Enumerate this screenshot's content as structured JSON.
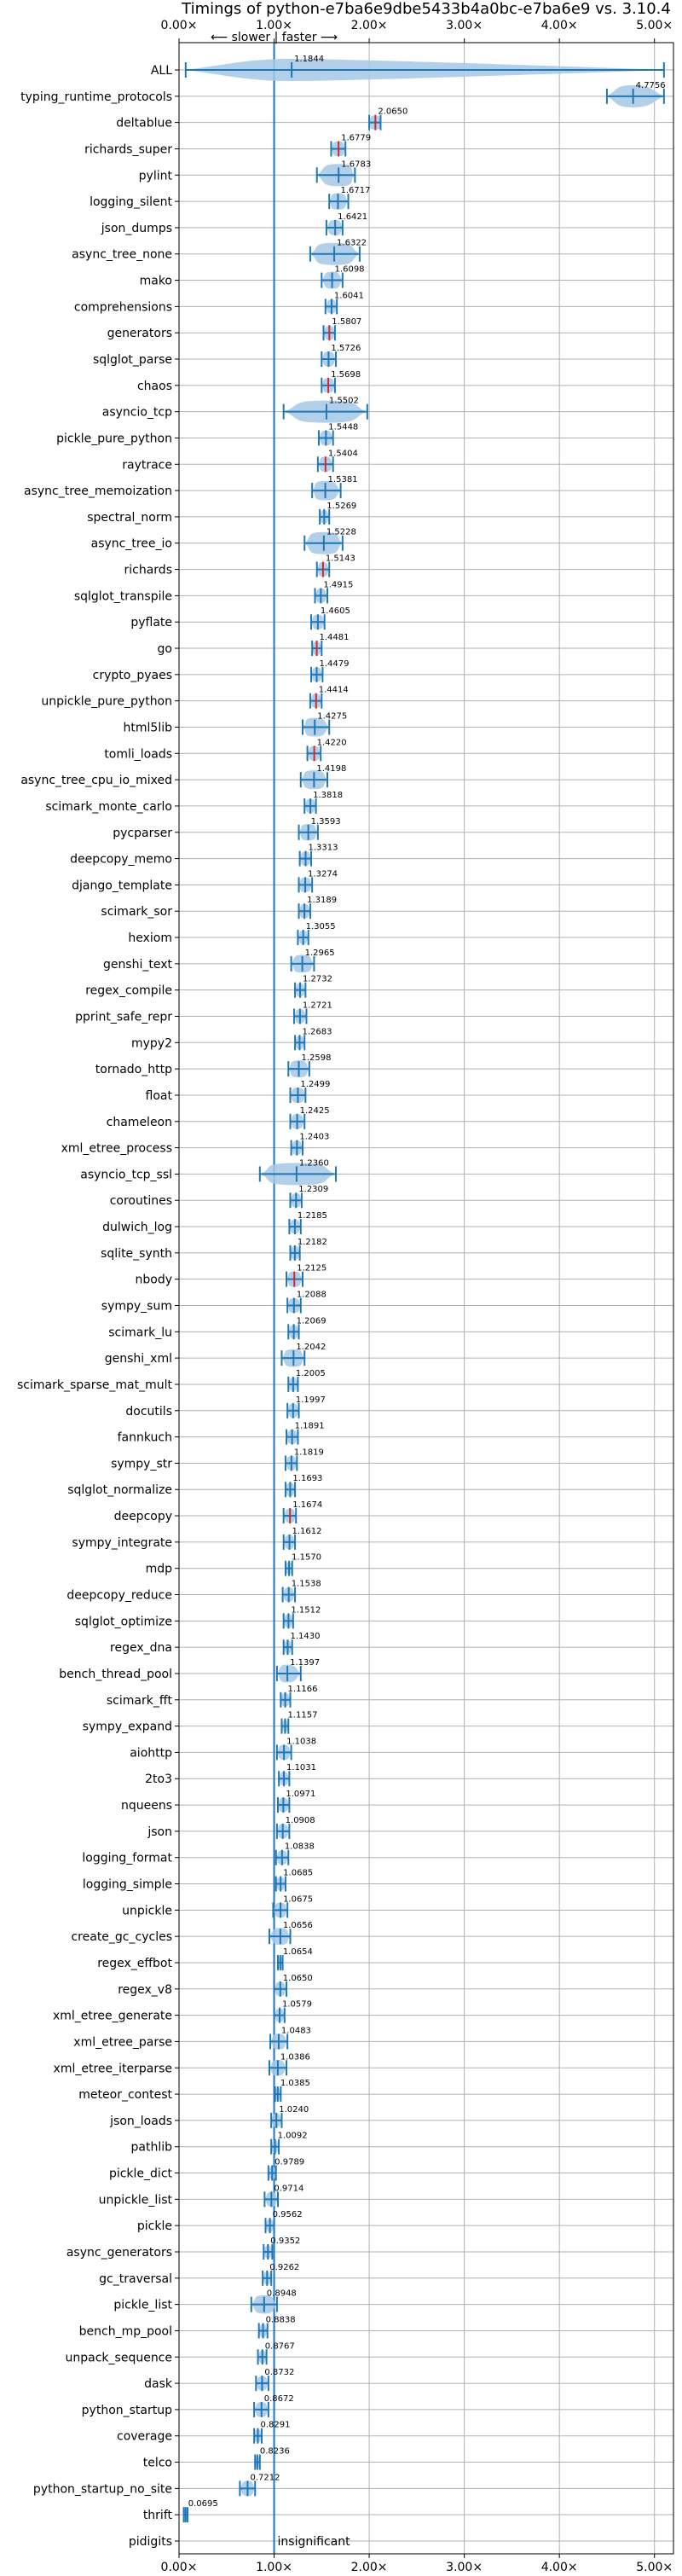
{
  "chart_data": {
    "type": "violin",
    "title": "Timings of python-e7ba6e9dbe5433b4a0bc-e7ba6e9 vs. 3.10.4",
    "direction_note": "⟵ slower | faster ⟶",
    "xlim": [
      0,
      5.2
    ],
    "xticks": [
      0,
      1,
      2,
      3,
      4,
      5
    ],
    "xtick_labels": [
      "0.00×",
      "1.00×",
      "2.00×",
      "3.00×",
      "4.00×",
      "5.00×"
    ],
    "grid": true,
    "reference_line": 1.0,
    "colors": {
      "violin": "#a6c8e6",
      "line": "#1f77b4",
      "median_marker": "#d62728",
      "grid": "#b0b0b0",
      "frame": "#000000"
    },
    "benchmarks": [
      {
        "name": "ALL",
        "value": 1.1844,
        "label": "1.1844",
        "min": 0.07,
        "max": 5.1,
        "spread": 0.45
      },
      {
        "name": "typing_runtime_protocols",
        "value": 4.7756,
        "label": "4.7756",
        "min": 4.5,
        "max": 5.1,
        "spread": 0.2
      },
      {
        "name": "deltablue",
        "value": 2.065,
        "label": "2.0650",
        "min": 2.0,
        "max": 2.12,
        "spread": 0.08,
        "red": true
      },
      {
        "name": "richards_super",
        "value": 1.6779,
        "label": "1.6779",
        "min": 1.6,
        "max": 1.75,
        "spread": 0.08,
        "red": true
      },
      {
        "name": "pylint",
        "value": 1.6783,
        "label": "1.6783",
        "min": 1.45,
        "max": 1.85,
        "spread": 0.2
      },
      {
        "name": "logging_silent",
        "value": 1.6717,
        "label": "1.6717",
        "min": 1.58,
        "max": 1.78,
        "spread": 0.1
      },
      {
        "name": "json_dumps",
        "value": 1.6421,
        "label": "1.6421",
        "min": 1.55,
        "max": 1.72,
        "spread": 0.08
      },
      {
        "name": "async_tree_none",
        "value": 1.6322,
        "label": "1.6322",
        "min": 1.38,
        "max": 1.9,
        "spread": 0.25
      },
      {
        "name": "mako",
        "value": 1.6098,
        "label": "1.6098",
        "min": 1.5,
        "max": 1.72,
        "spread": 0.1
      },
      {
        "name": "comprehensions",
        "value": 1.6041,
        "label": "1.6041",
        "min": 1.54,
        "max": 1.66,
        "spread": 0.06
      },
      {
        "name": "generators",
        "value": 1.5807,
        "label": "1.5807",
        "min": 1.52,
        "max": 1.64,
        "spread": 0.06,
        "red": true
      },
      {
        "name": "sqlglot_parse",
        "value": 1.5726,
        "label": "1.5726",
        "min": 1.5,
        "max": 1.65,
        "spread": 0.07
      },
      {
        "name": "chaos",
        "value": 1.5698,
        "label": "1.5698",
        "min": 1.5,
        "max": 1.64,
        "spread": 0.07,
        "red": true
      },
      {
        "name": "asyncio_tcp",
        "value": 1.5502,
        "label": "1.5502",
        "min": 1.1,
        "max": 1.98,
        "spread": 0.4
      },
      {
        "name": "pickle_pure_python",
        "value": 1.5448,
        "label": "1.5448",
        "min": 1.47,
        "max": 1.62,
        "spread": 0.07
      },
      {
        "name": "raytrace",
        "value": 1.5404,
        "label": "1.5404",
        "min": 1.46,
        "max": 1.62,
        "spread": 0.07,
        "red": true
      },
      {
        "name": "async_tree_memoization",
        "value": 1.5381,
        "label": "1.5381",
        "min": 1.4,
        "max": 1.7,
        "spread": 0.15
      },
      {
        "name": "spectral_norm",
        "value": 1.5269,
        "label": "1.5269",
        "min": 1.48,
        "max": 1.58,
        "spread": 0.05
      },
      {
        "name": "async_tree_io",
        "value": 1.5228,
        "label": "1.5228",
        "min": 1.32,
        "max": 1.72,
        "spread": 0.2
      },
      {
        "name": "richards",
        "value": 1.5143,
        "label": "1.5143",
        "min": 1.45,
        "max": 1.58,
        "spread": 0.06,
        "red": true
      },
      {
        "name": "sqlglot_transpile",
        "value": 1.4915,
        "label": "1.4915",
        "min": 1.43,
        "max": 1.56,
        "spread": 0.06
      },
      {
        "name": "pyflate",
        "value": 1.4605,
        "label": "1.4605",
        "min": 1.39,
        "max": 1.53,
        "spread": 0.07
      },
      {
        "name": "go",
        "value": 1.4481,
        "label": "1.4481",
        "min": 1.4,
        "max": 1.5,
        "spread": 0.05,
        "red": true
      },
      {
        "name": "crypto_pyaes",
        "value": 1.4479,
        "label": "1.4479",
        "min": 1.39,
        "max": 1.51,
        "spread": 0.06
      },
      {
        "name": "unpickle_pure_python",
        "value": 1.4414,
        "label": "1.4414",
        "min": 1.38,
        "max": 1.5,
        "spread": 0.06,
        "red": true
      },
      {
        "name": "html5lib",
        "value": 1.4275,
        "label": "1.4275",
        "min": 1.3,
        "max": 1.58,
        "spread": 0.13
      },
      {
        "name": "tomli_loads",
        "value": 1.422,
        "label": "1.4220",
        "min": 1.35,
        "max": 1.49,
        "spread": 0.07,
        "red": true
      },
      {
        "name": "async_tree_cpu_io_mixed",
        "value": 1.4198,
        "label": "1.4198",
        "min": 1.28,
        "max": 1.56,
        "spread": 0.14
      },
      {
        "name": "scimark_monte_carlo",
        "value": 1.3818,
        "label": "1.3818",
        "min": 1.32,
        "max": 1.44,
        "spread": 0.06
      },
      {
        "name": "pycparser",
        "value": 1.3593,
        "label": "1.3593",
        "min": 1.26,
        "max": 1.46,
        "spread": 0.1
      },
      {
        "name": "deepcopy_memo",
        "value": 1.3313,
        "label": "1.3313",
        "min": 1.27,
        "max": 1.39,
        "spread": 0.06
      },
      {
        "name": "django_template",
        "value": 1.3274,
        "label": "1.3274",
        "min": 1.26,
        "max": 1.4,
        "spread": 0.07
      },
      {
        "name": "scimark_sor",
        "value": 1.3189,
        "label": "1.3189",
        "min": 1.26,
        "max": 1.38,
        "spread": 0.06
      },
      {
        "name": "hexiom",
        "value": 1.3055,
        "label": "1.3055",
        "min": 1.25,
        "max": 1.36,
        "spread": 0.05
      },
      {
        "name": "genshi_text",
        "value": 1.2965,
        "label": "1.2965",
        "min": 1.18,
        "max": 1.42,
        "spread": 0.12
      },
      {
        "name": "regex_compile",
        "value": 1.2732,
        "label": "1.2732",
        "min": 1.22,
        "max": 1.33,
        "spread": 0.05
      },
      {
        "name": "pprint_safe_repr",
        "value": 1.2721,
        "label": "1.2721",
        "min": 1.21,
        "max": 1.34,
        "spread": 0.06
      },
      {
        "name": "mypy2",
        "value": 1.2683,
        "label": "1.2683",
        "min": 1.22,
        "max": 1.32,
        "spread": 0.05
      },
      {
        "name": "tornado_http",
        "value": 1.2598,
        "label": "1.2598",
        "min": 1.15,
        "max": 1.37,
        "spread": 0.11
      },
      {
        "name": "float",
        "value": 1.2499,
        "label": "1.2499",
        "min": 1.17,
        "max": 1.33,
        "spread": 0.08
      },
      {
        "name": "chameleon",
        "value": 1.2425,
        "label": "1.2425",
        "min": 1.17,
        "max": 1.32,
        "spread": 0.07
      },
      {
        "name": "xml_etree_process",
        "value": 1.2403,
        "label": "1.2403",
        "min": 1.18,
        "max": 1.3,
        "spread": 0.06
      },
      {
        "name": "asyncio_tcp_ssl",
        "value": 1.236,
        "label": "1.2360",
        "min": 0.85,
        "max": 1.65,
        "spread": 0.4
      },
      {
        "name": "coroutines",
        "value": 1.2309,
        "label": "1.2309",
        "min": 1.17,
        "max": 1.29,
        "spread": 0.06
      },
      {
        "name": "dulwich_log",
        "value": 1.2185,
        "label": "1.2185",
        "min": 1.16,
        "max": 1.28,
        "spread": 0.06
      },
      {
        "name": "sqlite_synth",
        "value": 1.2182,
        "label": "1.2182",
        "min": 1.17,
        "max": 1.27,
        "spread": 0.05
      },
      {
        "name": "nbody",
        "value": 1.2125,
        "label": "1.2125",
        "min": 1.13,
        "max": 1.3,
        "spread": 0.08,
        "red": true
      },
      {
        "name": "sympy_sum",
        "value": 1.2088,
        "label": "1.2088",
        "min": 1.14,
        "max": 1.28,
        "spread": 0.07
      },
      {
        "name": "scimark_lu",
        "value": 1.2069,
        "label": "1.2069",
        "min": 1.15,
        "max": 1.26,
        "spread": 0.05
      },
      {
        "name": "genshi_xml",
        "value": 1.2042,
        "label": "1.2042",
        "min": 1.08,
        "max": 1.32,
        "spread": 0.12
      },
      {
        "name": "scimark_sparse_mat_mult",
        "value": 1.2005,
        "label": "1.2005",
        "min": 1.15,
        "max": 1.25,
        "spread": 0.05
      },
      {
        "name": "docutils",
        "value": 1.1997,
        "label": "1.1997",
        "min": 1.14,
        "max": 1.26,
        "spread": 0.06
      },
      {
        "name": "fannkuch",
        "value": 1.1891,
        "label": "1.1891",
        "min": 1.13,
        "max": 1.25,
        "spread": 0.06
      },
      {
        "name": "sympy_str",
        "value": 1.1819,
        "label": "1.1819",
        "min": 1.12,
        "max": 1.24,
        "spread": 0.06
      },
      {
        "name": "sqlglot_normalize",
        "value": 1.1693,
        "label": "1.1693",
        "min": 1.12,
        "max": 1.22,
        "spread": 0.05
      },
      {
        "name": "deepcopy",
        "value": 1.1674,
        "label": "1.1674",
        "min": 1.1,
        "max": 1.23,
        "spread": 0.06,
        "red": true
      },
      {
        "name": "sympy_integrate",
        "value": 1.1612,
        "label": "1.1612",
        "min": 1.1,
        "max": 1.22,
        "spread": 0.06
      },
      {
        "name": "mdp",
        "value": 1.157,
        "label": "1.1570",
        "min": 1.12,
        "max": 1.19,
        "spread": 0.04
      },
      {
        "name": "deepcopy_reduce",
        "value": 1.1538,
        "label": "1.1538",
        "min": 1.09,
        "max": 1.22,
        "spread": 0.06
      },
      {
        "name": "sqlglot_optimize",
        "value": 1.1512,
        "label": "1.1512",
        "min": 1.1,
        "max": 1.2,
        "spread": 0.05
      },
      {
        "name": "regex_dna",
        "value": 1.143,
        "label": "1.1430",
        "min": 1.1,
        "max": 1.19,
        "spread": 0.04
      },
      {
        "name": "bench_thread_pool",
        "value": 1.1397,
        "label": "1.1397",
        "min": 1.03,
        "max": 1.28,
        "spread": 0.1
      },
      {
        "name": "scimark_fft",
        "value": 1.1166,
        "label": "1.1166",
        "min": 1.07,
        "max": 1.17,
        "spread": 0.05
      },
      {
        "name": "sympy_expand",
        "value": 1.1157,
        "label": "1.1157",
        "min": 1.08,
        "max": 1.15,
        "spread": 0.03
      },
      {
        "name": "aiohttp",
        "value": 1.1038,
        "label": "1.1038",
        "min": 1.03,
        "max": 1.18,
        "spread": 0.07
      },
      {
        "name": "2to3",
        "value": 1.1031,
        "label": "1.1031",
        "min": 1.05,
        "max": 1.16,
        "spread": 0.05
      },
      {
        "name": "nqueens",
        "value": 1.0971,
        "label": "1.0971",
        "min": 1.04,
        "max": 1.16,
        "spread": 0.06
      },
      {
        "name": "json",
        "value": 1.0908,
        "label": "1.0908",
        "min": 1.03,
        "max": 1.16,
        "spread": 0.06
      },
      {
        "name": "logging_format",
        "value": 1.0838,
        "label": "1.0838",
        "min": 1.02,
        "max": 1.15,
        "spread": 0.06
      },
      {
        "name": "logging_simple",
        "value": 1.0685,
        "label": "1.0685",
        "min": 1.02,
        "max": 1.12,
        "spread": 0.05
      },
      {
        "name": "unpickle",
        "value": 1.0675,
        "label": "1.0675",
        "min": 0.99,
        "max": 1.14,
        "spread": 0.07
      },
      {
        "name": "create_gc_cycles",
        "value": 1.0656,
        "label": "1.0656",
        "min": 0.95,
        "max": 1.17,
        "spread": 0.1
      },
      {
        "name": "regex_effbot",
        "value": 1.0654,
        "label": "1.0654",
        "min": 1.04,
        "max": 1.09,
        "spread": 0.03
      },
      {
        "name": "regex_v8",
        "value": 1.065,
        "label": "1.0650",
        "min": 1.0,
        "max": 1.13,
        "spread": 0.06
      },
      {
        "name": "xml_etree_generate",
        "value": 1.0579,
        "label": "1.0579",
        "min": 1.0,
        "max": 1.11,
        "spread": 0.05
      },
      {
        "name": "xml_etree_parse",
        "value": 1.0483,
        "label": "1.0483",
        "min": 0.96,
        "max": 1.14,
        "spread": 0.08
      },
      {
        "name": "xml_etree_iterparse",
        "value": 1.0386,
        "label": "1.0386",
        "min": 0.95,
        "max": 1.13,
        "spread": 0.08
      },
      {
        "name": "meteor_contest",
        "value": 1.0385,
        "label": "1.0385",
        "min": 1.01,
        "max": 1.07,
        "spread": 0.03
      },
      {
        "name": "json_loads",
        "value": 1.024,
        "label": "1.0240",
        "min": 0.97,
        "max": 1.08,
        "spread": 0.05
      },
      {
        "name": "pathlib",
        "value": 1.0092,
        "label": "1.0092",
        "min": 0.97,
        "max": 1.05,
        "spread": 0.04
      },
      {
        "name": "pickle_dict",
        "value": 0.9789,
        "label": "0.9789",
        "min": 0.94,
        "max": 1.02,
        "spread": 0.04
      },
      {
        "name": "unpickle_list",
        "value": 0.9714,
        "label": "0.9714",
        "min": 0.9,
        "max": 1.04,
        "spread": 0.06
      },
      {
        "name": "pickle",
        "value": 0.9562,
        "label": "0.9562",
        "min": 0.91,
        "max": 1.0,
        "spread": 0.04
      },
      {
        "name": "async_generators",
        "value": 0.9352,
        "label": "0.9352",
        "min": 0.89,
        "max": 0.98,
        "spread": 0.04
      },
      {
        "name": "gc_traversal",
        "value": 0.9262,
        "label": "0.9262",
        "min": 0.88,
        "max": 0.97,
        "spread": 0.04
      },
      {
        "name": "pickle_list",
        "value": 0.8948,
        "label": "0.8948",
        "min": 0.76,
        "max": 1.03,
        "spread": 0.12
      },
      {
        "name": "bench_mp_pool",
        "value": 0.8838,
        "label": "0.8838",
        "min": 0.84,
        "max": 0.93,
        "spread": 0.04
      },
      {
        "name": "unpack_sequence",
        "value": 0.8767,
        "label": "0.8767",
        "min": 0.83,
        "max": 0.92,
        "spread": 0.04
      },
      {
        "name": "dask",
        "value": 0.8732,
        "label": "0.8732",
        "min": 0.81,
        "max": 0.94,
        "spread": 0.06
      },
      {
        "name": "python_startup",
        "value": 0.8672,
        "label": "0.8672",
        "min": 0.79,
        "max": 0.94,
        "spread": 0.07
      },
      {
        "name": "coverage",
        "value": 0.8291,
        "label": "0.8291",
        "min": 0.79,
        "max": 0.87,
        "spread": 0.04
      },
      {
        "name": "telco",
        "value": 0.8236,
        "label": "0.8236",
        "min": 0.8,
        "max": 0.85,
        "spread": 0.02
      },
      {
        "name": "python_startup_no_site",
        "value": 0.7212,
        "label": "0.7212",
        "min": 0.64,
        "max": 0.8,
        "spread": 0.07
      },
      {
        "name": "thrift",
        "value": 0.0695,
        "label": "0.0695",
        "min": 0.05,
        "max": 0.09,
        "spread": 0.02
      },
      {
        "name": "pidigits",
        "value": null,
        "label": "insignificant"
      }
    ]
  }
}
